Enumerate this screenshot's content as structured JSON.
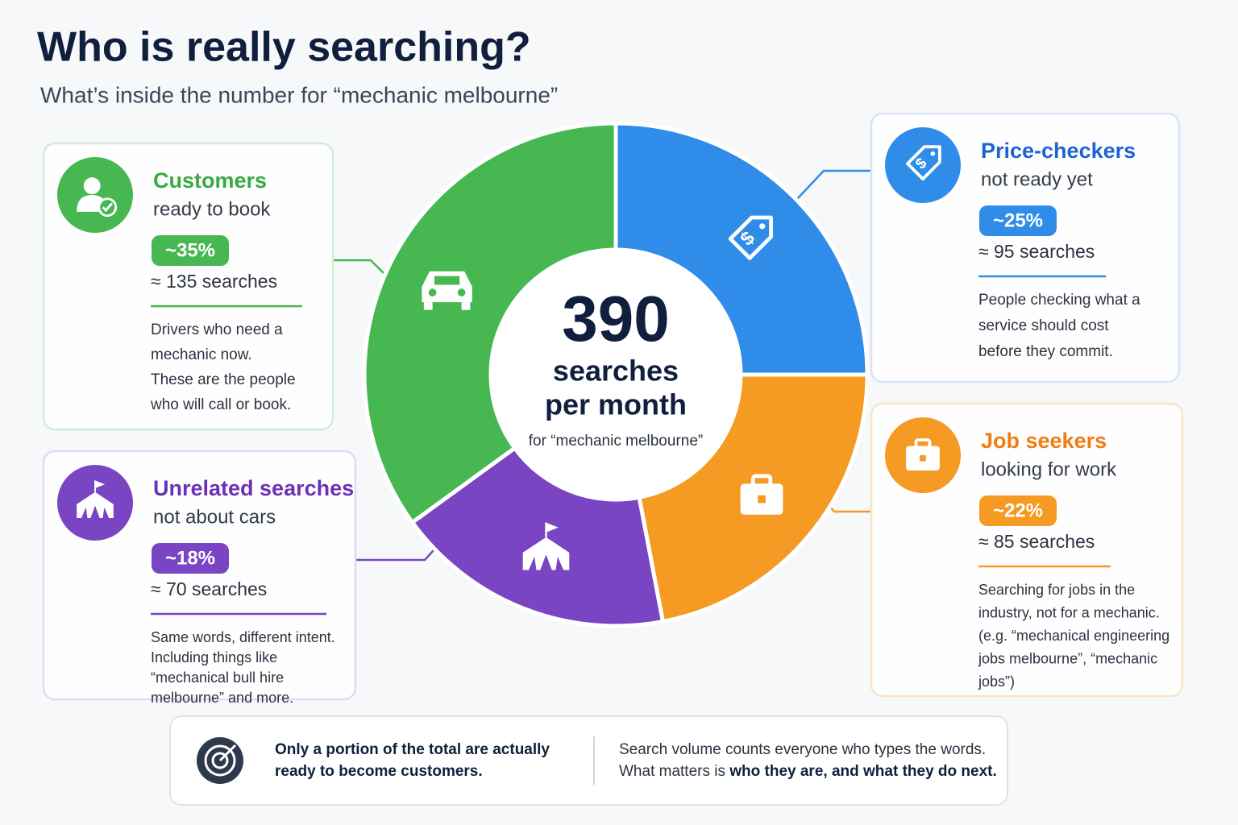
{
  "title": "Who is really searching?",
  "subtitle": "What’s inside the number for “mechanic melbourne”",
  "chart_data": {
    "type": "donut",
    "categories": [
      "Price-checkers",
      "Job seekers",
      "Unrelated searches",
      "Customers"
    ],
    "values": [
      25,
      22,
      18,
      35
    ],
    "value_labels": [
      "~25%",
      "~22%",
      "~18%",
      "~35%"
    ],
    "colors": [
      "#2f8ce8",
      "#f59a22",
      "#7a45c2",
      "#47b751"
    ],
    "center": {
      "number": "390",
      "line1": "searches",
      "line2": "per month",
      "note": "for “mechanic melbourne”"
    }
  },
  "cards": [
    {
      "subtitle": "not ready yet",
      "searches": "≈ 95 searches",
      "description": [
        "People checking what a",
        "service should cost",
        "before they commit."
      ]
    },
    {
      "subtitle": "looking for work",
      "searches": "≈ 85 searches",
      "description": [
        "Searching for jobs in the",
        "industry, not for a mechanic.",
        "(e.g. “mechanical engineering",
        "jobs melbourne”, “mechanic",
        "jobs”)"
      ]
    },
    {
      "subtitle": "not about cars",
      "searches": "≈ 70 searches",
      "description": [
        "Same words, different intent.",
        "Including things like",
        "“mechanical bull hire",
        "melbourne” and more."
      ]
    },
    {
      "subtitle": "ready to book",
      "searches": "≈ 135 searches",
      "description": [
        "Drivers who need a",
        "mechanic now.",
        "These are the people",
        "who will call or book."
      ]
    }
  ],
  "footer": {
    "left": [
      "Only a portion of the total are actually",
      "ready to become customers."
    ],
    "right_line1": "Search volume counts everyone who types the words.",
    "right_line2_plain": "What matters is ",
    "right_line2_bold": "who they are, and what they do next."
  }
}
